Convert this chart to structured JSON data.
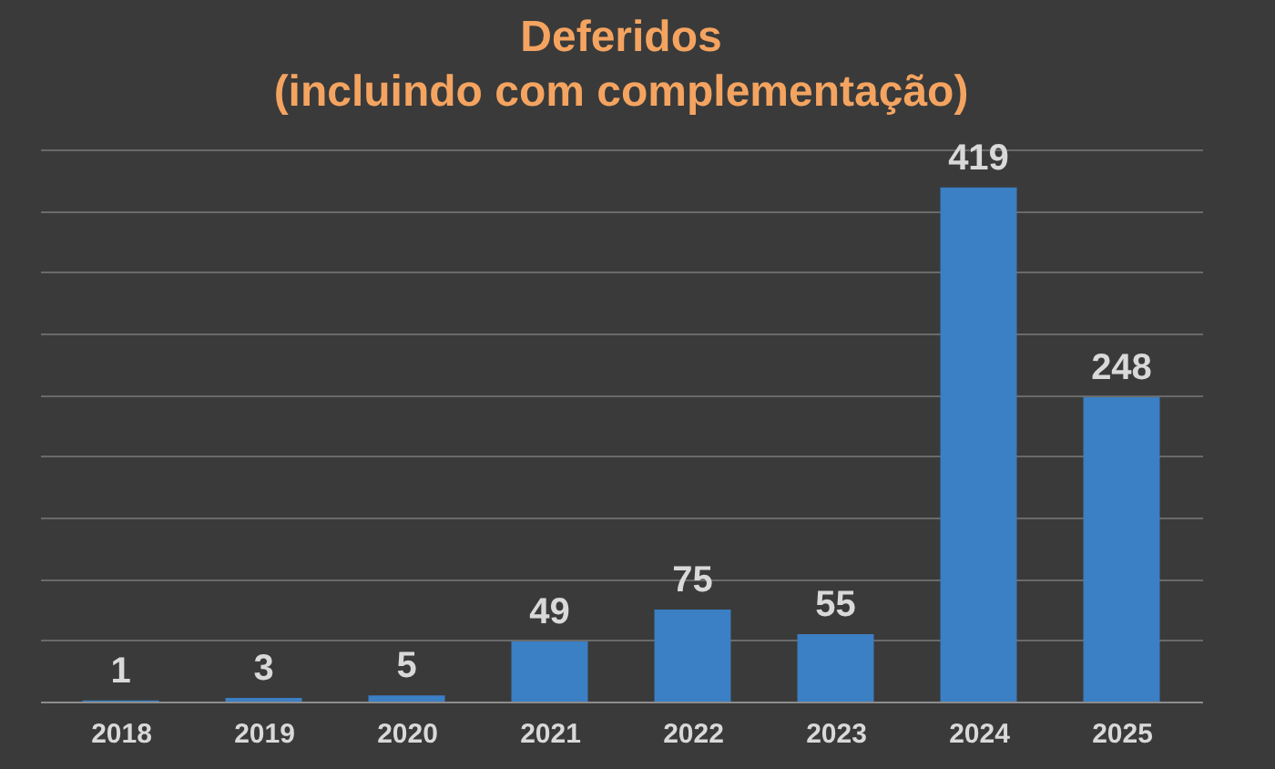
{
  "chart_data": {
    "type": "bar",
    "title": "Deferidos",
    "subtitle": "(incluindo com complementação)",
    "categories": [
      "2018",
      "2019",
      "2020",
      "2021",
      "2022",
      "2023",
      "2024",
      "2025"
    ],
    "values": [
      1,
      3,
      5,
      49,
      75,
      55,
      419,
      248
    ],
    "color": "#3b7fc4",
    "grid": "y",
    "tick_labels": "x",
    "data_labels": true
  }
}
